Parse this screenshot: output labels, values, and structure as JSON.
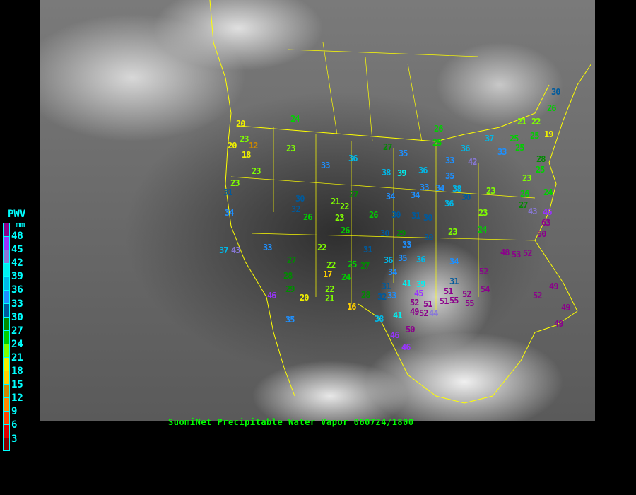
{
  "title": "SuomiNet Precipitable Water Vapor 060724/1800",
  "legend": {
    "title": "PWV",
    "unit": "mm",
    "labels": [
      "48",
      "45",
      "42",
      "39",
      "36",
      "33",
      "30",
      "27",
      "24",
      "21",
      "18",
      "15",
      "12",
      "9",
      "6",
      "3"
    ],
    "colors": [
      "#8b008b",
      "#9933ff",
      "#8878d8",
      "#00f0f0",
      "#00b8e8",
      "#1e90ff",
      "#005a9c",
      "#008b00",
      "#00d000",
      "#80ff00",
      "#f0f000",
      "#ffd000",
      "#cc8800",
      "#ff8800",
      "#ff4400",
      "#dd0000",
      "#8b0000"
    ]
  },
  "colors": {
    "background": "#000000",
    "boundaries": "#ffff00",
    "title": "#00ff00",
    "legend_text": "#00ffff"
  },
  "stations": [
    24,
    20,
    23,
    20,
    12,
    18,
    23,
    23,
    23,
    33,
    36,
    27,
    35,
    38,
    39,
    36,
    26,
    25,
    36,
    33,
    42,
    35,
    37,
    25,
    25,
    21,
    22,
    19,
    30,
    26,
    33,
    25,
    28,
    23,
    25,
    24,
    26,
    27,
    43,
    46,
    63,
    50,
    23,
    30,
    23,
    24,
    23,
    36,
    38,
    33,
    34,
    34,
    34,
    27,
    21,
    22,
    23,
    26,
    30,
    32,
    26,
    31,
    34,
    37,
    43,
    33,
    27,
    28,
    29,
    46,
    20,
    22,
    21,
    24,
    17,
    22,
    25,
    27,
    16,
    22,
    26,
    30,
    30,
    29,
    33,
    31,
    36,
    34,
    41,
    39,
    45,
    31,
    33,
    32,
    28,
    41,
    38,
    46,
    46,
    50,
    52,
    49,
    51,
    52,
    44,
    51,
    51,
    55,
    52,
    55,
    54,
    52,
    48,
    53,
    52,
    34,
    31,
    35,
    52,
    49,
    49,
    49,
    30,
    36,
    35,
    31,
    30
  ]
}
